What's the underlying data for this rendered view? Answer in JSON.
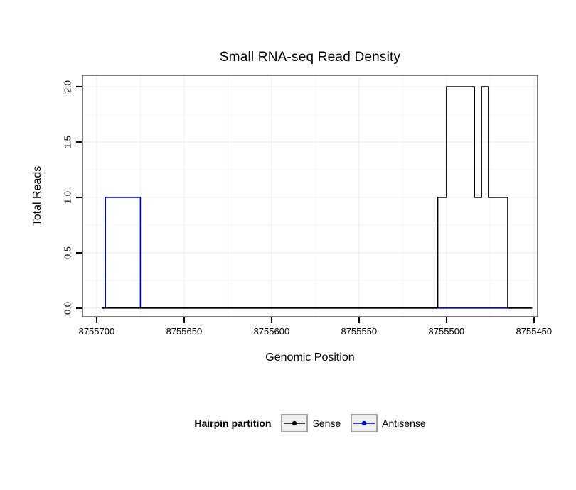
{
  "chart_data": {
    "type": "line",
    "title": "Small RNA-seq Read Density",
    "xlabel": "Genomic Position",
    "ylabel": "Total Reads",
    "x_reversed": true,
    "xlim": [
      8755708.5,
      8755447.5
    ],
    "ylim": [
      -0.085,
      2.11
    ],
    "x_ticks": [
      8755700,
      8755650,
      8755600,
      8755550,
      8755500,
      8755450
    ],
    "x_tick_labels": [
      "8755700",
      "8755650",
      "8755600",
      "8755550",
      "8755500",
      "8755450"
    ],
    "y_ticks": [
      0,
      0.5,
      1,
      1.5,
      2
    ],
    "y_tick_labels": [
      "0.0",
      "0.5",
      "1.0",
      "1.5",
      "2.0"
    ],
    "grid": {
      "major_color": "#ececec",
      "minor_color": "#f6f6f6"
    },
    "panel_border_color": "#7d7d7d",
    "series": [
      {
        "name": "Sense",
        "color": "#000000",
        "step_points": [
          [
            8755697,
            0
          ],
          [
            8755505,
            0
          ],
          [
            8755505,
            1
          ],
          [
            8755500,
            1
          ],
          [
            8755500,
            2
          ],
          [
            8755484,
            2
          ],
          [
            8755484,
            1
          ],
          [
            8755480,
            1
          ],
          [
            8755480,
            2
          ],
          [
            8755476,
            2
          ],
          [
            8755476,
            1
          ],
          [
            8755465,
            1
          ],
          [
            8755465,
            0
          ],
          [
            8755451,
            0
          ]
        ]
      },
      {
        "name": "Antisense",
        "color": "#0000cd",
        "step_points": [
          [
            8755697,
            0
          ],
          [
            8755695,
            0
          ],
          [
            8755695,
            1
          ],
          [
            8755675,
            1
          ],
          [
            8755675,
            0
          ],
          [
            8755451,
            0
          ]
        ]
      }
    ],
    "legend": {
      "title": "Hairpin partition",
      "position": "bottom",
      "entries": [
        {
          "label": "Sense",
          "color": "#000000"
        },
        {
          "label": "Antisense",
          "color": "#0000cd"
        }
      ]
    }
  }
}
